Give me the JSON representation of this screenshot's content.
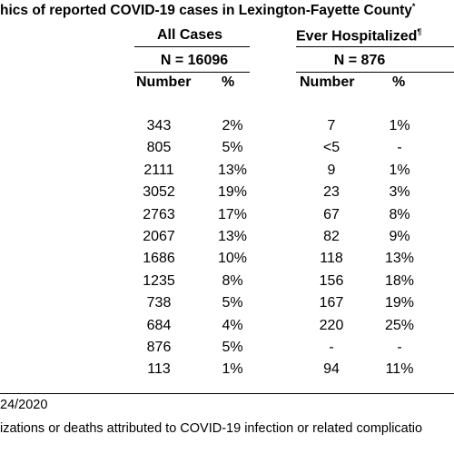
{
  "title": "hics of reported COVID-19 cases in Lexington-Fayette County",
  "title_mark": "*",
  "groups": {
    "all": {
      "label": "All Cases",
      "n": "N = 16096"
    },
    "hosp": {
      "label": "Ever Hospitalized",
      "mark": "¶",
      "n": "N = 876"
    }
  },
  "columns": {
    "number": "Number",
    "percent": "%"
  },
  "rows": [
    {
      "all_n": "343",
      "all_p": "2%",
      "hosp_n": "7",
      "hosp_p": "1%"
    },
    {
      "all_n": "805",
      "all_p": "5%",
      "hosp_n": "<5",
      "hosp_p": "-"
    },
    {
      "all_n": "2111",
      "all_p": "13%",
      "hosp_n": "9",
      "hosp_p": "1%"
    },
    {
      "all_n": "3052",
      "all_p": "19%",
      "hosp_n": "23",
      "hosp_p": "3%"
    },
    {
      "all_n": "2763",
      "all_p": "17%",
      "hosp_n": "67",
      "hosp_p": "8%"
    },
    {
      "all_n": "2067",
      "all_p": "13%",
      "hosp_n": "82",
      "hosp_p": "9%"
    },
    {
      "all_n": "1686",
      "all_p": "10%",
      "hosp_n": "118",
      "hosp_p": "13%"
    },
    {
      "all_n": "1235",
      "all_p": "8%",
      "hosp_n": "156",
      "hosp_p": "18%"
    },
    {
      "all_n": "738",
      "all_p": "5%",
      "hosp_n": "167",
      "hosp_p": "19%"
    },
    {
      "all_n": "684",
      "all_p": "4%",
      "hosp_n": "220",
      "hosp_p": "25%"
    },
    {
      "all_n": "876",
      "all_p": "5%",
      "hosp_n": "-",
      "hosp_p": "-"
    },
    {
      "all_n": "113",
      "all_p": "1%",
      "hosp_n": "94",
      "hosp_p": "11%"
    }
  ],
  "footnotes": {
    "date": "24/2020",
    "hosp_def": "izations or deaths attributed to COVID-19 infection or related complicatio"
  }
}
